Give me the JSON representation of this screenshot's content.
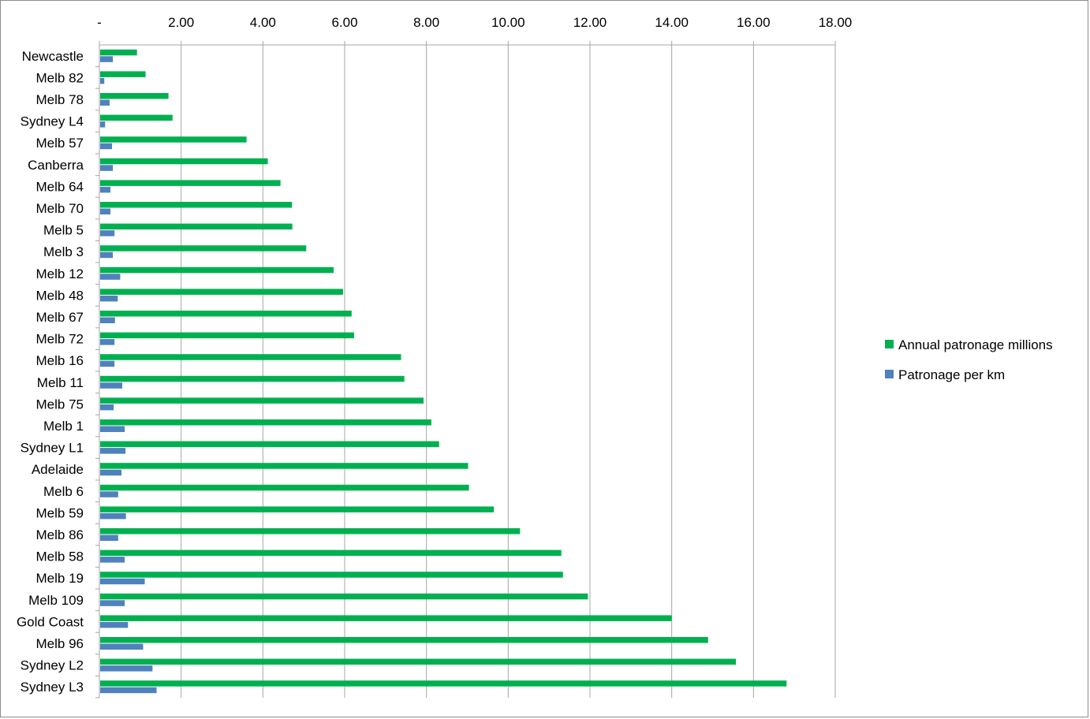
{
  "chart_data": {
    "type": "bar",
    "orientation": "horizontal",
    "categories": [
      "Newcastle",
      "Melb 82",
      "Melb 78",
      "Sydney L4",
      "Melb 57",
      "Canberra",
      "Melb 64",
      "Melb 70",
      "Melb 5",
      "Melb 3",
      "Melb 12",
      "Melb 48",
      "Melb 67",
      "Melb 72",
      "Melb 16",
      "Melb 11",
      "Melb 75",
      "Melb 1",
      "Sydney L1",
      "Adelaide",
      "Melb 6",
      "Melb 59",
      "Melb 86",
      "Melb 58",
      "Melb 19",
      "Melb 109",
      "Gold Coast",
      "Melb 96",
      "Sydney L2",
      "Sydney L3"
    ],
    "series": [
      {
        "name": "Annual patronage millions",
        "color": "#00b050",
        "values": [
          0.92,
          1.13,
          1.69,
          1.79,
          3.6,
          4.12,
          4.43,
          4.71,
          4.72,
          5.06,
          5.73,
          5.96,
          6.17,
          6.23,
          7.38,
          7.46,
          7.93,
          8.12,
          8.31,
          9.02,
          9.04,
          9.65,
          10.29,
          11.3,
          11.34,
          11.95,
          14.0,
          14.89,
          15.57,
          16.81
        ]
      },
      {
        "name": "Patronage per km",
        "color": "#4f81bd",
        "values": [
          0.33,
          0.12,
          0.25,
          0.14,
          0.31,
          0.33,
          0.27,
          0.27,
          0.37,
          0.33,
          0.51,
          0.45,
          0.38,
          0.37,
          0.37,
          0.56,
          0.35,
          0.62,
          0.64,
          0.54,
          0.46,
          0.65,
          0.46,
          0.62,
          1.11,
          0.62,
          0.7,
          1.07,
          1.3,
          1.4
        ]
      }
    ],
    "x_ticks": [
      "-",
      "2.00",
      "4.00",
      "6.00",
      "8.00",
      "10.00",
      "12.00",
      "14.00",
      "16.00",
      "18.00"
    ],
    "xlim": [
      0,
      18
    ],
    "x_axis_position": "top",
    "grid": true,
    "legend_position": "right",
    "title": "",
    "xlabel": "",
    "ylabel": ""
  }
}
